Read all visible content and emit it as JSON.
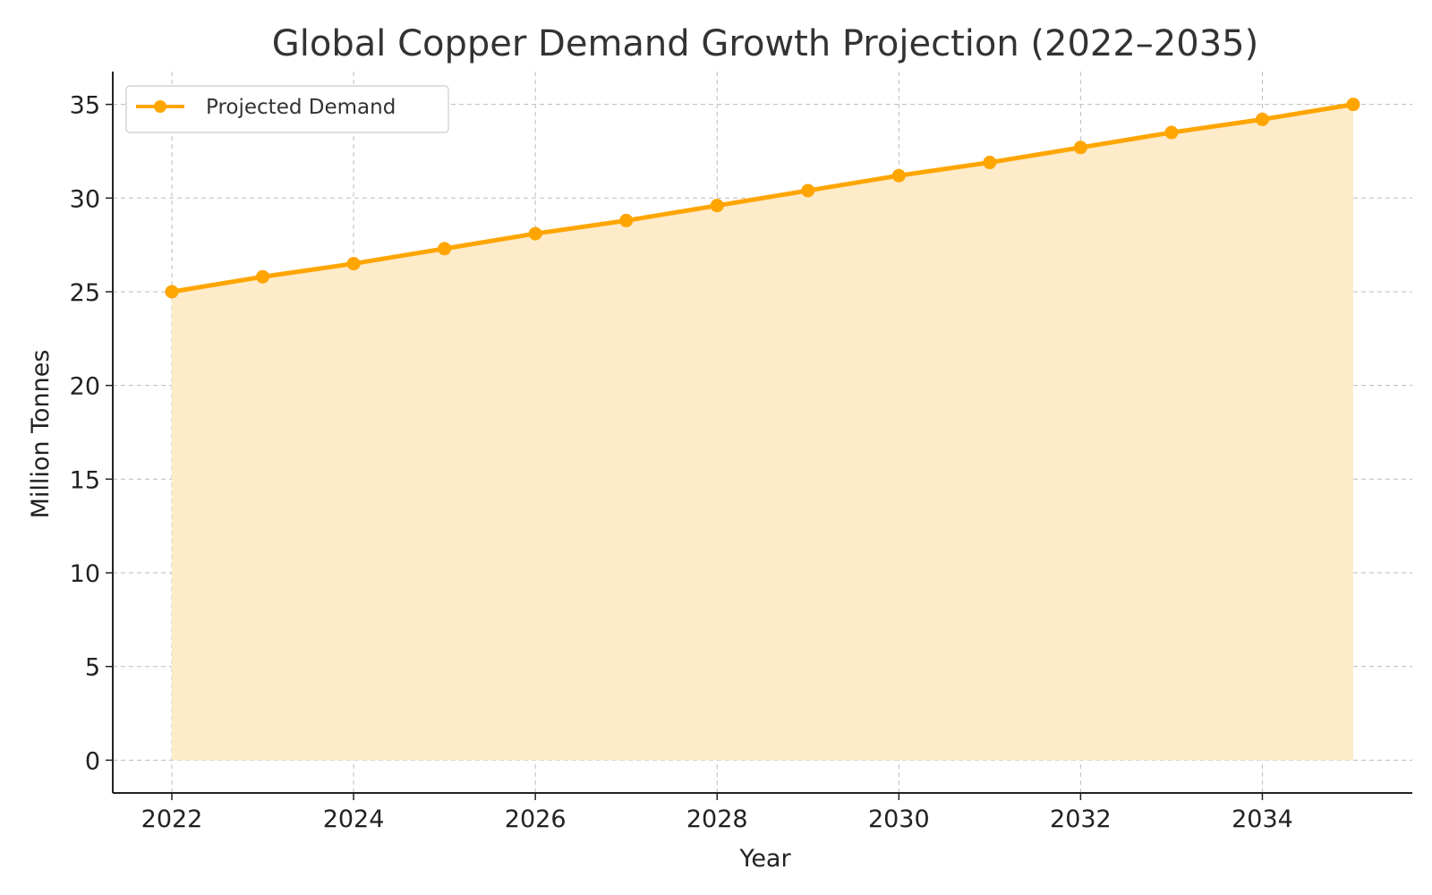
{
  "chart_data": {
    "type": "area",
    "title": "Global Copper Demand Growth Projection (2022–2035)",
    "xlabel": "Year",
    "ylabel": "Million Tonnes",
    "x": [
      2022,
      2023,
      2024,
      2025,
      2026,
      2027,
      2028,
      2029,
      2030,
      2031,
      2032,
      2033,
      2034,
      2035
    ],
    "series": [
      {
        "name": "Projected Demand",
        "values": [
          25.0,
          25.8,
          26.5,
          27.3,
          28.1,
          28.8,
          29.6,
          30.4,
          31.2,
          31.9,
          32.7,
          33.5,
          34.2,
          35.0
        ]
      }
    ],
    "xlim": [
      2021.35,
      2035.65
    ],
    "ylim": [
      -1.75,
      36.75
    ],
    "x_ticks": [
      2022,
      2024,
      2026,
      2028,
      2030,
      2032,
      2034
    ],
    "x_tick_labels": [
      "2022",
      "2024",
      "2026",
      "2028",
      "2030",
      "2032",
      "2034"
    ],
    "y_ticks": [
      0,
      5,
      10,
      15,
      20,
      25,
      30,
      35
    ],
    "y_tick_labels": [
      "0",
      "5",
      "10",
      "15",
      "20",
      "25",
      "30",
      "35"
    ],
    "grid": true,
    "legend_position": "top-left",
    "colors": {
      "line": "#FFA500",
      "fill": "#FDEBC9",
      "grid": "#bdbdbd",
      "axis": "#222222"
    }
  }
}
